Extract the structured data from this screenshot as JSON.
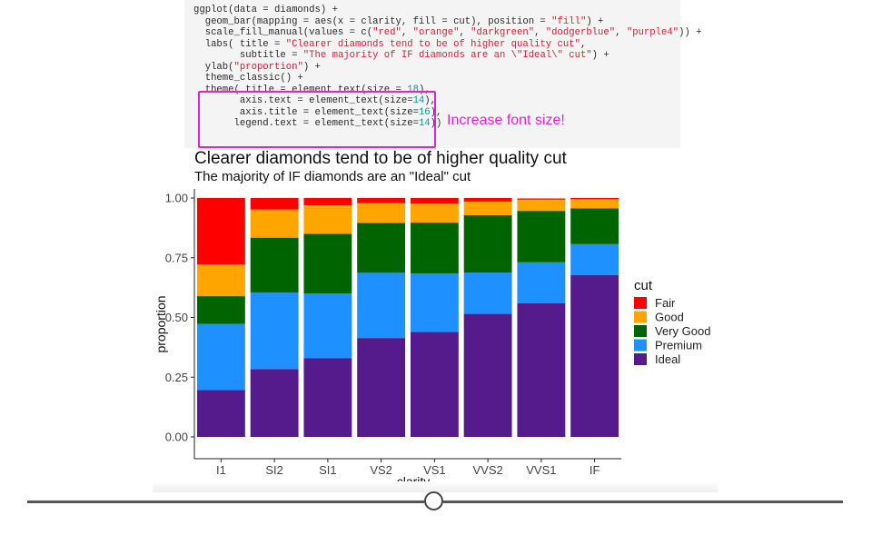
{
  "code": {
    "lines": [
      [
        {
          "t": "ggplot(data = diamonds) +",
          "c": ""
        }
      ],
      [
        {
          "t": "  geom_bar(mapping = aes(x = clarity, fill = cut), position = ",
          "c": ""
        },
        {
          "t": "\"fill\"",
          "c": "str"
        },
        {
          "t": ") +",
          "c": ""
        }
      ],
      [
        {
          "t": "  scale_fill_manual(values = c(",
          "c": ""
        },
        {
          "t": "\"red\"",
          "c": "str"
        },
        {
          "t": ", ",
          "c": ""
        },
        {
          "t": "\"orange\"",
          "c": "str"
        },
        {
          "t": ", ",
          "c": ""
        },
        {
          "t": "\"darkgreen\"",
          "c": "str"
        },
        {
          "t": ", ",
          "c": ""
        },
        {
          "t": "\"dodgerblue\"",
          "c": "str"
        },
        {
          "t": ", ",
          "c": ""
        },
        {
          "t": "\"purple4\"",
          "c": "str"
        },
        {
          "t": ")) +",
          "c": ""
        }
      ],
      [
        {
          "t": "  labs( title = ",
          "c": ""
        },
        {
          "t": "\"Clearer diamonds tend to be of higher quality cut\"",
          "c": "str"
        },
        {
          "t": ",",
          "c": ""
        }
      ],
      [
        {
          "t": "        subtitle = ",
          "c": ""
        },
        {
          "t": "\"The majority of IF diamonds are an \\\"Ideal\\\" cut\"",
          "c": "str"
        },
        {
          "t": ") +",
          "c": ""
        }
      ],
      [
        {
          "t": "  ylab(",
          "c": ""
        },
        {
          "t": "\"proportion\"",
          "c": "str"
        },
        {
          "t": ") +",
          "c": ""
        }
      ],
      [
        {
          "t": "  theme_classic() +",
          "c": ""
        }
      ],
      [
        {
          "t": "  theme( title = element_text(size = ",
          "c": ""
        },
        {
          "t": "18",
          "c": "num"
        },
        {
          "t": "),",
          "c": ""
        }
      ],
      [
        {
          "t": "        axis.text = element_text(size=",
          "c": ""
        },
        {
          "t": "14",
          "c": "num"
        },
        {
          "t": "),",
          "c": ""
        }
      ],
      [
        {
          "t": "        axis.title = element_text(size=",
          "c": ""
        },
        {
          "t": "16",
          "c": "num"
        },
        {
          "t": "),",
          "c": ""
        }
      ],
      [
        {
          "t": "       legend.text = element_text(size=",
          "c": ""
        },
        {
          "t": "14",
          "c": "num"
        },
        {
          "t": "))",
          "c": ""
        }
      ]
    ]
  },
  "annotation": {
    "text": "Increase font size!",
    "color": "#e620d6"
  },
  "chart_data": {
    "type": "bar",
    "stacked": "fill",
    "title": "Clearer diamonds tend to be of higher quality cut",
    "subtitle": "The majority of IF diamonds are an \"Ideal\" cut",
    "xlabel": "clarity",
    "ylabel": "proportion",
    "ylim": [
      0,
      1
    ],
    "yticks": [
      "0.00",
      "0.25",
      "0.50",
      "0.75",
      "1.00"
    ],
    "categories": [
      "I1",
      "SI2",
      "SI1",
      "VS2",
      "VS1",
      "VVS2",
      "VVS1",
      "IF"
    ],
    "series": [
      {
        "name": "Ideal",
        "color": "#551a8b",
        "values": [
          0.196,
          0.284,
          0.329,
          0.414,
          0.439,
          0.515,
          0.559,
          0.678
        ]
      },
      {
        "name": "Premium",
        "color": "#1e90ff",
        "values": [
          0.277,
          0.32,
          0.271,
          0.273,
          0.245,
          0.173,
          0.172,
          0.129
        ]
      },
      {
        "name": "Very Good",
        "color": "#006400",
        "values": [
          0.116,
          0.23,
          0.25,
          0.209,
          0.213,
          0.24,
          0.215,
          0.15
        ]
      },
      {
        "name": "Good",
        "color": "#ffa500",
        "values": [
          0.133,
          0.118,
          0.119,
          0.083,
          0.079,
          0.057,
          0.047,
          0.038
        ]
      },
      {
        "name": "Fair",
        "color": "#ff0000",
        "values": [
          0.278,
          0.048,
          0.031,
          0.021,
          0.024,
          0.015,
          0.005,
          0.005
        ]
      }
    ],
    "legend": {
      "title": "cut",
      "position": "right",
      "order": [
        "Fair",
        "Good",
        "Very Good",
        "Premium",
        "Ideal"
      ]
    }
  },
  "slider": {
    "value": 0.5
  }
}
